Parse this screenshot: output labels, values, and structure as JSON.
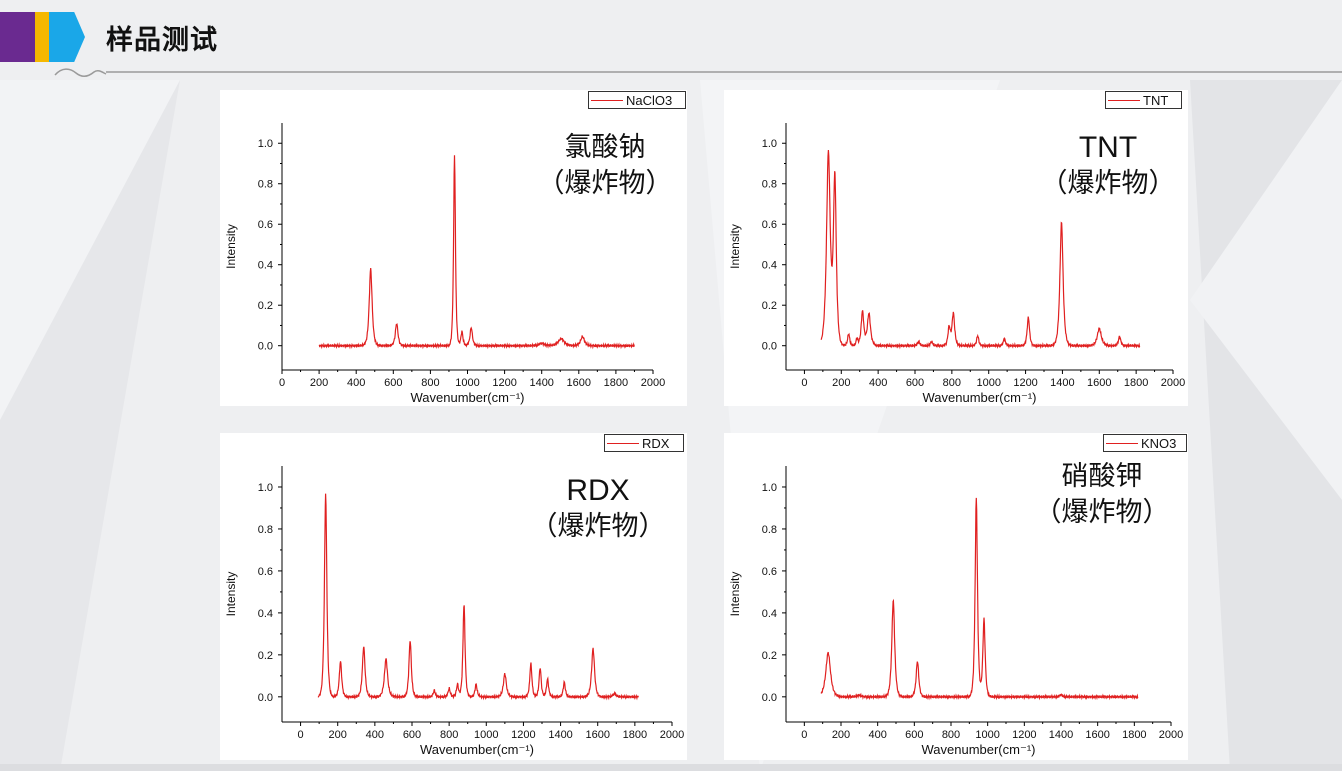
{
  "header": {
    "title": "样品测试"
  },
  "colors": {
    "stripe_purple": "#6a2a90",
    "stripe_yellow": "#f5b800",
    "stripe_blue": "#1aa7e8",
    "line": "#e02020"
  },
  "chart_data": [
    {
      "type": "line",
      "legend": "NaClO3",
      "annotation": [
        "氯酸钠",
        "（爆炸物）"
      ],
      "xlabel": "Wavenumber(cm⁻¹)",
      "ylabel": "Intensity",
      "xlim": [
        0,
        2000
      ],
      "ylim": [
        -0.12,
        1.1
      ],
      "xticks": [
        0,
        200,
        400,
        600,
        800,
        1000,
        1200,
        1400,
        1600,
        1800,
        2000
      ],
      "xticklabels": [
        "0",
        "200",
        "400",
        "600",
        "800",
        "1000",
        "1200",
        "1400",
        "1600",
        "1800",
        "2000"
      ],
      "yticks": [
        0.0,
        0.2,
        0.4,
        0.6,
        0.8,
        1.0
      ],
      "yticklabels": [
        "0.0",
        "0.2",
        "0.4",
        "0.6",
        "0.8",
        "1.0"
      ],
      "x_range": [
        200,
        1900
      ],
      "baseline": 0.0,
      "peaks": [
        {
          "x": 478,
          "y": 0.38,
          "w": 11
        },
        {
          "x": 618,
          "y": 0.11,
          "w": 10
        },
        {
          "x": 930,
          "y": 0.94,
          "w": 7
        },
        {
          "x": 970,
          "y": 0.07,
          "w": 8
        },
        {
          "x": 1020,
          "y": 0.09,
          "w": 9
        },
        {
          "x": 1400,
          "y": 0.012,
          "w": 20
        },
        {
          "x": 1505,
          "y": 0.035,
          "w": 22
        },
        {
          "x": 1620,
          "y": 0.045,
          "w": 14
        }
      ]
    },
    {
      "type": "line",
      "legend": "TNT",
      "annotation": [
        "TNT",
        "（爆炸物）"
      ],
      "xlabel": "Wavenumber(cm⁻¹)",
      "ylabel": "Intensity",
      "xlim": [
        -100,
        2000
      ],
      "ylim": [
        -0.12,
        1.1
      ],
      "xticks": [
        0,
        200,
        400,
        600,
        800,
        1000,
        1200,
        1400,
        1600,
        1800,
        2000
      ],
      "xticklabels": [
        "0",
        "200",
        "400",
        "600",
        "800",
        "1000",
        "1200",
        "1400",
        "1600",
        "1800",
        "2000"
      ],
      "yticks": [
        0.0,
        0.2,
        0.4,
        0.6,
        0.8,
        1.0
      ],
      "yticklabels": [
        "0.0",
        "0.2",
        "0.4",
        "0.6",
        "0.8",
        "1.0"
      ],
      "x_range": [
        90,
        1820
      ],
      "baseline": 0.0,
      "peaks": [
        {
          "x": 130,
          "y": 0.95,
          "w": 14
        },
        {
          "x": 165,
          "y": 0.82,
          "w": 11
        },
        {
          "x": 240,
          "y": 0.06,
          "w": 8
        },
        {
          "x": 285,
          "y": 0.035,
          "w": 7
        },
        {
          "x": 315,
          "y": 0.17,
          "w": 10
        },
        {
          "x": 350,
          "y": 0.16,
          "w": 12
        },
        {
          "x": 620,
          "y": 0.02,
          "w": 9
        },
        {
          "x": 690,
          "y": 0.02,
          "w": 9
        },
        {
          "x": 785,
          "y": 0.09,
          "w": 9
        },
        {
          "x": 808,
          "y": 0.16,
          "w": 10
        },
        {
          "x": 940,
          "y": 0.05,
          "w": 8
        },
        {
          "x": 1085,
          "y": 0.035,
          "w": 8
        },
        {
          "x": 1215,
          "y": 0.14,
          "w": 9
        },
        {
          "x": 1395,
          "y": 0.61,
          "w": 12
        },
        {
          "x": 1600,
          "y": 0.085,
          "w": 15
        },
        {
          "x": 1710,
          "y": 0.045,
          "w": 9
        }
      ]
    },
    {
      "type": "line",
      "legend": "RDX",
      "annotation": [
        "RDX",
        "（爆炸物）"
      ],
      "xlabel": "Wavenumber(cm⁻¹)",
      "ylabel": "Intensity",
      "xlim": [
        -100,
        2000
      ],
      "ylim": [
        -0.12,
        1.1
      ],
      "xticks": [
        0,
        200,
        400,
        600,
        800,
        1000,
        1200,
        1400,
        1600,
        1800,
        2000
      ],
      "xticklabels": [
        "0",
        "200",
        "400",
        "600",
        "800",
        "1000",
        "1200",
        "1400",
        "1600",
        "1800",
        "2000"
      ],
      "yticks": [
        0.0,
        0.2,
        0.4,
        0.6,
        0.8,
        1.0
      ],
      "yticklabels": [
        "0.0",
        "0.2",
        "0.4",
        "0.6",
        "0.8",
        "1.0"
      ],
      "x_range": [
        95,
        1820
      ],
      "baseline": 0.0,
      "peaks": [
        {
          "x": 135,
          "y": 0.97,
          "w": 9
        },
        {
          "x": 215,
          "y": 0.17,
          "w": 9
        },
        {
          "x": 340,
          "y": 0.24,
          "w": 10
        },
        {
          "x": 460,
          "y": 0.18,
          "w": 12
        },
        {
          "x": 590,
          "y": 0.27,
          "w": 9
        },
        {
          "x": 720,
          "y": 0.03,
          "w": 8
        },
        {
          "x": 800,
          "y": 0.04,
          "w": 8
        },
        {
          "x": 845,
          "y": 0.06,
          "w": 8
        },
        {
          "x": 880,
          "y": 0.44,
          "w": 8
        },
        {
          "x": 945,
          "y": 0.06,
          "w": 8
        },
        {
          "x": 1100,
          "y": 0.11,
          "w": 11
        },
        {
          "x": 1240,
          "y": 0.16,
          "w": 8
        },
        {
          "x": 1290,
          "y": 0.14,
          "w": 8
        },
        {
          "x": 1330,
          "y": 0.085,
          "w": 8
        },
        {
          "x": 1420,
          "y": 0.07,
          "w": 8
        },
        {
          "x": 1575,
          "y": 0.23,
          "w": 11
        },
        {
          "x": 1690,
          "y": 0.015,
          "w": 12
        }
      ]
    },
    {
      "type": "line",
      "legend": "KNO3",
      "annotation": [
        "硝酸钾",
        "（爆炸物）"
      ],
      "xlabel": "Wavenumber(cm⁻¹)",
      "ylabel": "Intensity",
      "xlim": [
        -100,
        2000
      ],
      "ylim": [
        -0.12,
        1.1
      ],
      "xticks": [
        0,
        200,
        400,
        600,
        800,
        1000,
        1200,
        1400,
        1600,
        1800,
        2000
      ],
      "xticklabels": [
        "0",
        "200",
        "400",
        "600",
        "800",
        "1000",
        "1200",
        "1400",
        "1600",
        "1800",
        "2000"
      ],
      "yticks": [
        0.0,
        0.2,
        0.4,
        0.6,
        0.8,
        1.0
      ],
      "yticklabels": [
        "0.0",
        "0.2",
        "0.4",
        "0.6",
        "0.8",
        "1.0"
      ],
      "x_range": [
        90,
        1820
      ],
      "baseline": 0.0,
      "peaks": [
        {
          "x": 130,
          "y": 0.21,
          "w": 18
        },
        {
          "x": 300,
          "y": 0.008,
          "w": 15
        },
        {
          "x": 485,
          "y": 0.46,
          "w": 11
        },
        {
          "x": 617,
          "y": 0.17,
          "w": 10
        },
        {
          "x": 938,
          "y": 0.95,
          "w": 9
        },
        {
          "x": 980,
          "y": 0.37,
          "w": 9
        },
        {
          "x": 1400,
          "y": 0.01,
          "w": 10
        }
      ]
    }
  ]
}
